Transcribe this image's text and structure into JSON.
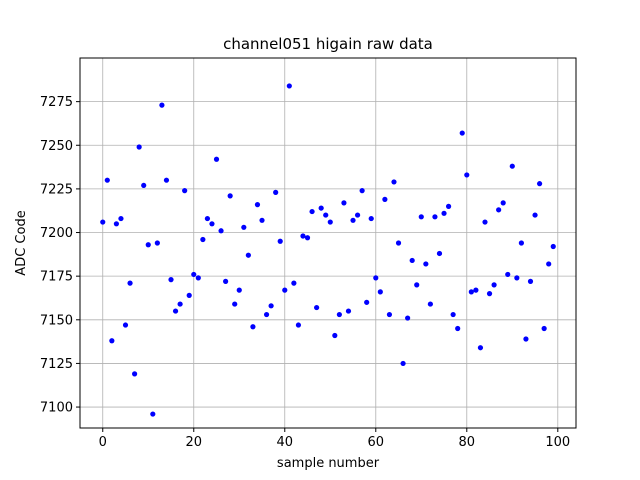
{
  "chart_data": {
    "type": "scatter",
    "title": "channel051 higain raw data",
    "xlabel": "sample number",
    "ylabel": "ADC Code",
    "xlim": [
      -5,
      104
    ],
    "ylim": [
      7088,
      7300
    ],
    "xticks": [
      0,
      20,
      40,
      60,
      80,
      100
    ],
    "yticks": [
      7100,
      7125,
      7150,
      7175,
      7200,
      7225,
      7250,
      7275
    ],
    "grid": true,
    "marker_color": "#0000ff",
    "series": [
      {
        "x": [
          0,
          1,
          2,
          3,
          4,
          5,
          6,
          7,
          8,
          9,
          10,
          11,
          12,
          13,
          14,
          15,
          16,
          17,
          18,
          19,
          20,
          21,
          22,
          23,
          24,
          25,
          26,
          27,
          28,
          29,
          30,
          31,
          32,
          33,
          34,
          35,
          36,
          37,
          38,
          39,
          40,
          41,
          42,
          43,
          44,
          45,
          46,
          47,
          48,
          49,
          50,
          51,
          52,
          53,
          54,
          55,
          56,
          57,
          58,
          59,
          60,
          61,
          62,
          63,
          64,
          65,
          66,
          67,
          68,
          69,
          70,
          71,
          72,
          73,
          74,
          75,
          76,
          77,
          78,
          79,
          80,
          81,
          82,
          83,
          84,
          85,
          86,
          87,
          88,
          89,
          90,
          91,
          92,
          93,
          94,
          95,
          96,
          97,
          98,
          99
        ],
        "y": [
          7206,
          7230,
          7138,
          7205,
          7208,
          7147,
          7171,
          7119,
          7249,
          7227,
          7193,
          7096,
          7194,
          7273,
          7230,
          7173,
          7155,
          7159,
          7224,
          7164,
          7176,
          7174,
          7196,
          7208,
          7205,
          7242,
          7201,
          7172,
          7221,
          7159,
          7167,
          7203,
          7187,
          7146,
          7216,
          7207,
          7153,
          7158,
          7223,
          7195,
          7167,
          7284,
          7171,
          7147,
          7198,
          7197,
          7212,
          7157,
          7214,
          7210,
          7206,
          7141,
          7153,
          7217,
          7155,
          7207,
          7210,
          7224,
          7160,
          7208,
          7174,
          7166,
          7219,
          7153,
          7229,
          7194,
          7125,
          7151,
          7184,
          7170,
          7209,
          7182,
          7159,
          7209,
          7188,
          7211,
          7215,
          7153,
          7145,
          7257,
          7233,
          7166,
          7167,
          7134,
          7206,
          7165,
          7170,
          7213,
          7217,
          7176,
          7238,
          7174,
          7194,
          7139,
          7172,
          7210,
          7228,
          7145,
          7182,
          7192
        ]
      }
    ]
  }
}
